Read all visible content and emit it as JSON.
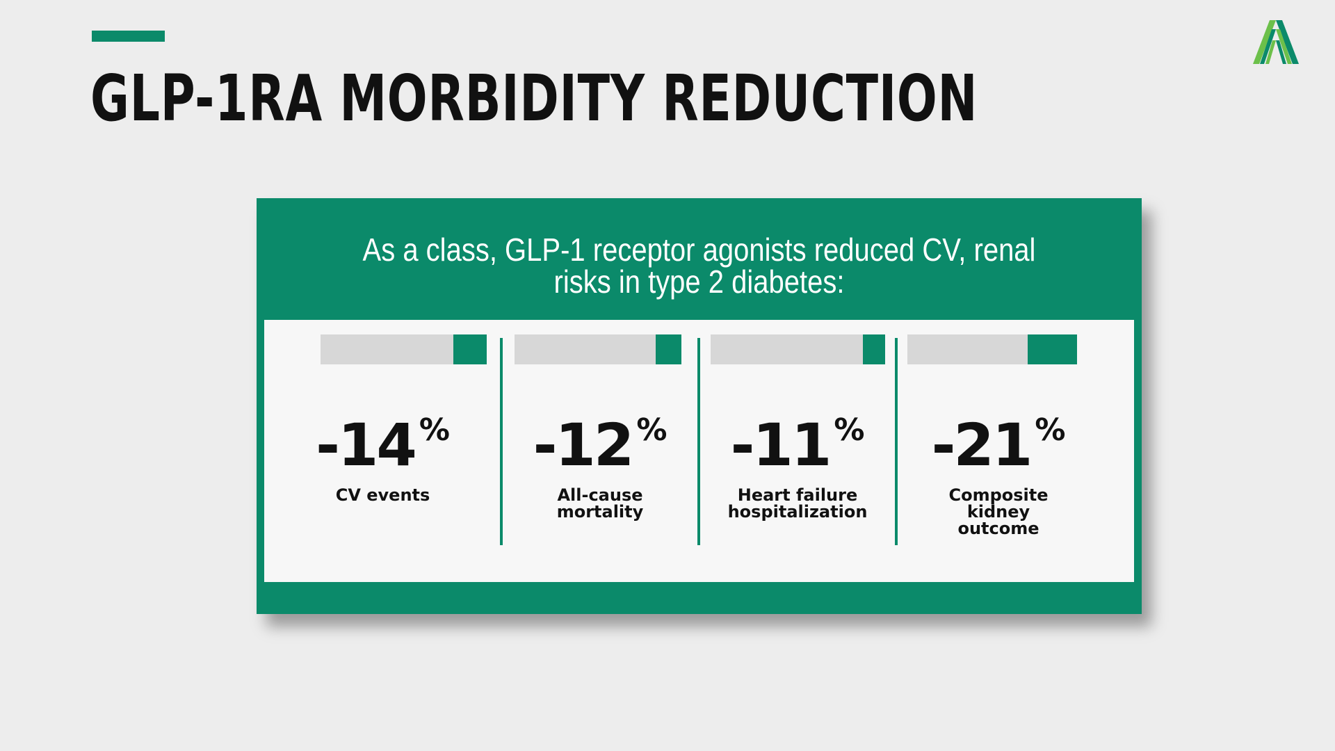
{
  "slide": {
    "title": "GLP-1RA MORBIDITY REDUCTION",
    "accent_color": "#0b8a6a",
    "logo_icon": "logo-icon"
  },
  "card": {
    "heading_line1": "As a class, GLP-1 receptor agonists reduced CV, renal",
    "heading_line2": "risks in type 2 diabetes:",
    "metrics": [
      {
        "value": "-14",
        "unit": "%",
        "label": "CV events",
        "relative_change_percent": -14
      },
      {
        "value": "-12",
        "unit": "%",
        "label": "All-cause\nmortality",
        "relative_change_percent": -12
      },
      {
        "value": "-11",
        "unit": "%",
        "label": "Heart failure\nhospitalization",
        "relative_change_percent": -11
      },
      {
        "value": "-21",
        "unit": "%",
        "label": "Composite\nkidney\noutcome",
        "relative_change_percent": -21
      }
    ]
  }
}
